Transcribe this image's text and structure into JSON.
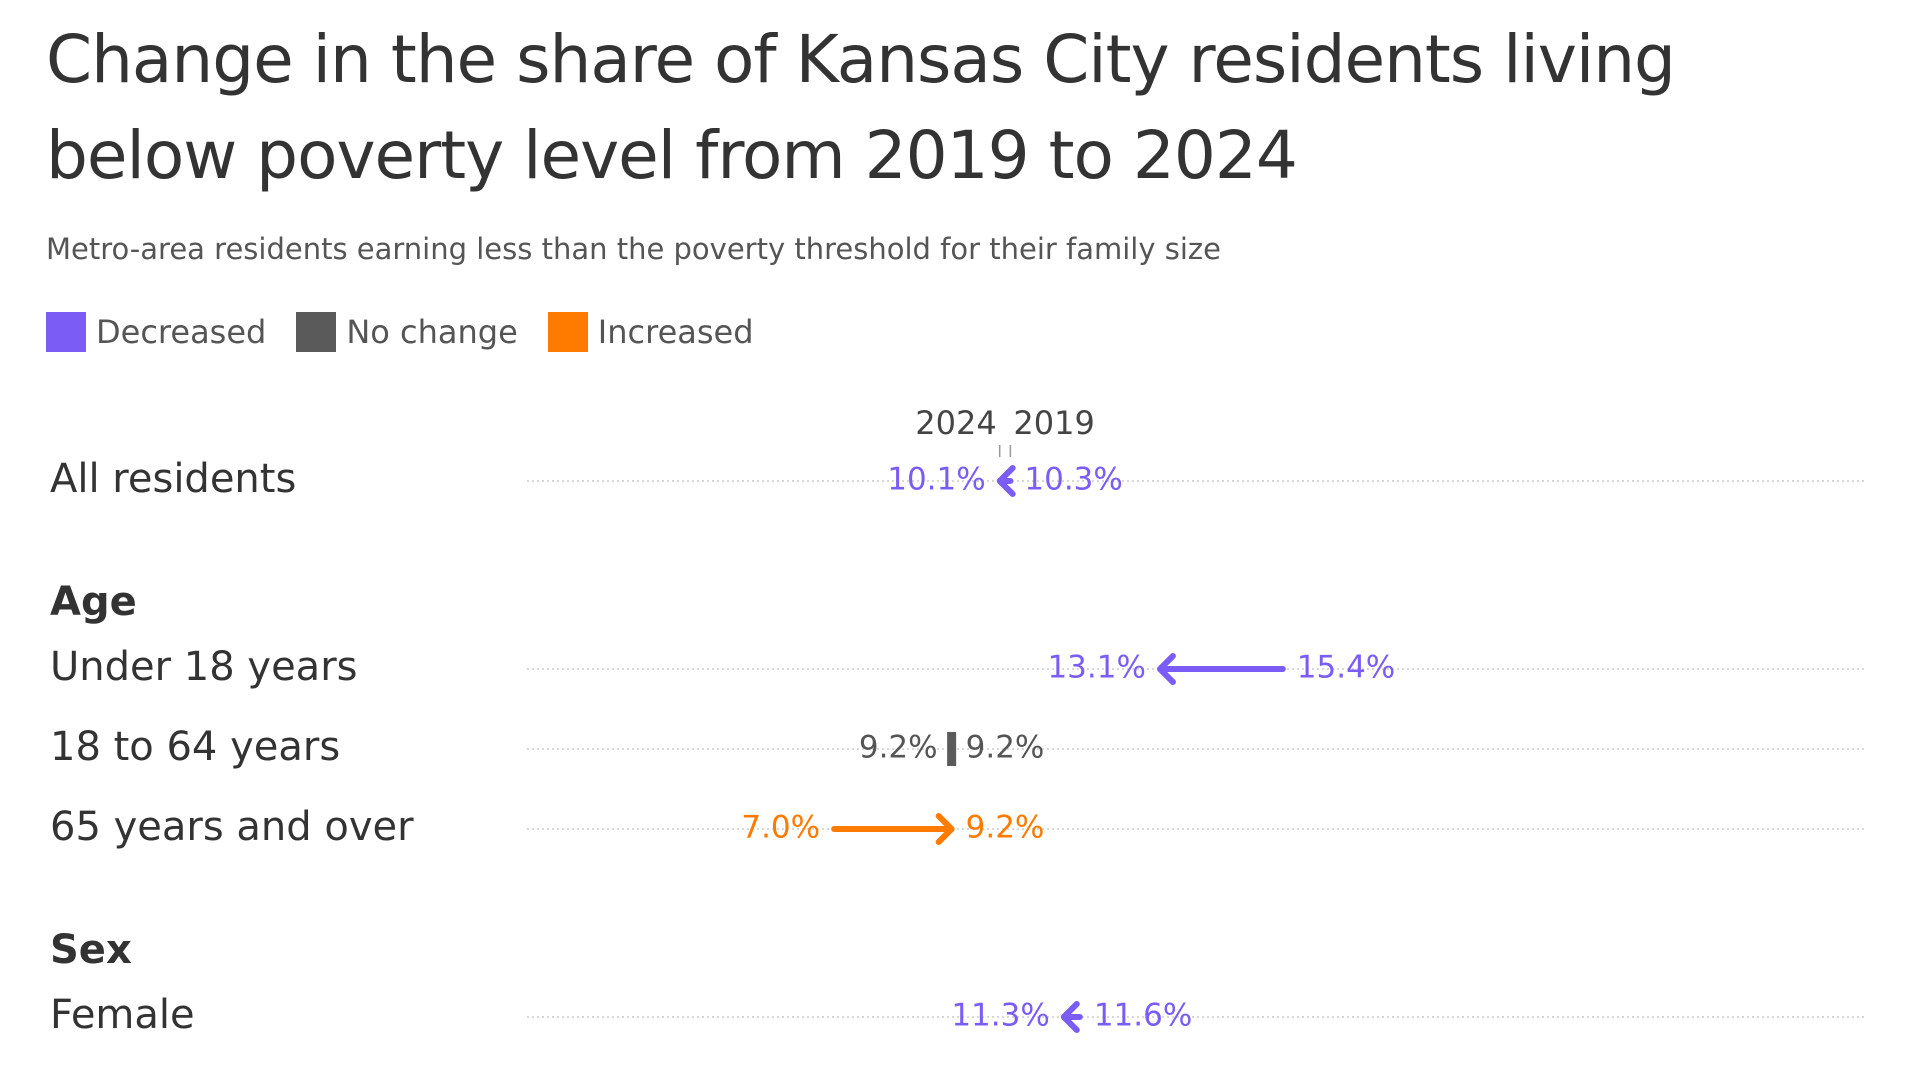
{
  "chart_data": {
    "type": "arrow",
    "title": "Change in the share of Kansas City residents living below poverty level from 2019 to 2024",
    "subtitle": "Metro-area residents earning less than the poverty threshold for their family size",
    "legend": [
      {
        "name": "Decreased",
        "color": "#7b5cf5"
      },
      {
        "name": "No change",
        "color": "#5a5a5a"
      },
      {
        "name": "Increased",
        "color": "#ff7b00"
      }
    ],
    "categories": [
      "All residents",
      "Under 18 years",
      "18 to 64 years",
      "65 years and over",
      "Female"
    ],
    "group_titles": [
      null,
      "Age",
      null,
      null,
      "Sex"
    ],
    "series": [
      {
        "name": "2019",
        "values": [
          10.3,
          15.4,
          9.2,
          7.0,
          11.6
        ],
        "value_labels": [
          "10.3%",
          "15.4%",
          "9.2%",
          "7.0%",
          "11.6%"
        ]
      },
      {
        "name": "2024",
        "values": [
          10.1,
          13.1,
          9.2,
          9.2,
          11.3
        ],
        "value_labels": [
          "10.1%",
          "13.1%",
          "9.2%",
          "9.2%",
          "11.3%"
        ]
      }
    ],
    "xlim": [
      1.25,
      26.3
    ]
  }
}
